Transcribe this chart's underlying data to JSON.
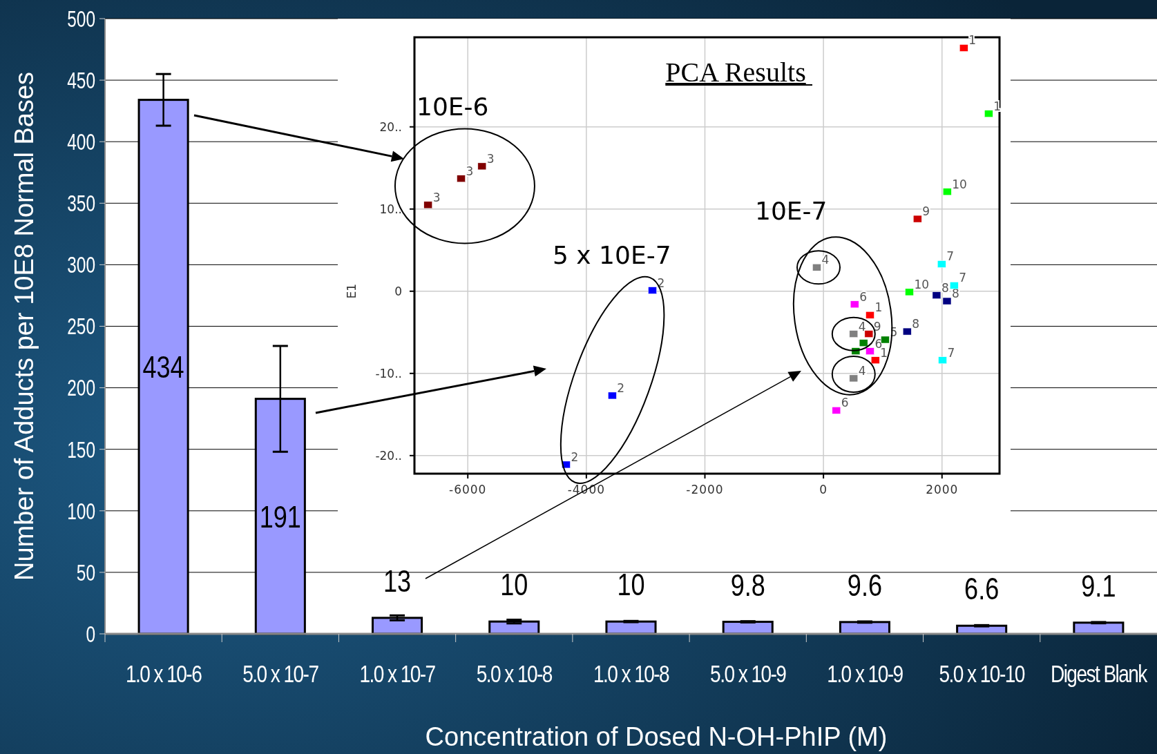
{
  "chart_data": [
    {
      "type": "bar",
      "categories": [
        "1.0 x 10-6",
        "5.0 x 10-7",
        "1.0 x 10-7",
        "5.0 x 10-8",
        "1.0 x 10-8",
        "5.0 x 10-9",
        "1.0 x 10-9",
        "5.0 x 10-10",
        "Digest Blank"
      ],
      "values": [
        434,
        191,
        13,
        10,
        10,
        9.8,
        9.6,
        6.6,
        9.1
      ],
      "errors": [
        21,
        43,
        2,
        1.5,
        0.5,
        0.5,
        0.5,
        0.5,
        0.5
      ],
      "color": "#9999ff",
      "ylim": [
        0,
        500
      ],
      "yticks": [
        0,
        50,
        100,
        150,
        200,
        250,
        300,
        350,
        400,
        450,
        500
      ],
      "grid": "y",
      "data_labels": true,
      "xlabel": "Concentration of Dosed N-OH-PhIP (M)",
      "ylabel": "Number of Adducts per 10E8 Normal Bases"
    },
    {
      "type": "scatter",
      "title": "PCA Results",
      "ylabel": "E1",
      "marker": "square",
      "grid": true,
      "xlim": [
        -6900,
        2970
      ],
      "ylim": [
        -22.2,
        30.9
      ],
      "xticks": [
        -6000,
        -4000,
        -2000,
        0,
        2000
      ],
      "yticks": [
        {
          "value": -20,
          "label": "-20.."
        },
        {
          "value": -10,
          "label": "-10.."
        },
        0,
        {
          "value": 10,
          "label": "10.."
        },
        {
          "value": 20,
          "label": "20.."
        }
      ],
      "annotations": [
        "10E-6",
        "5 x 10E-7",
        "10E-7",
        {
          "text": "1",
          "x": 2367,
          "y": 29.6
        },
        {
          "text": "1",
          "x": 785,
          "y": -2.9
        },
        {
          "text": "1",
          "x": 875,
          "y": -8.4
        },
        {
          "text": "2",
          "x": -2885,
          "y": 0.1
        },
        {
          "text": "2",
          "x": -3563,
          "y": -12.7
        },
        {
          "text": "2",
          "x": -4342,
          "y": -21.1
        },
        {
          "text": "3",
          "x": -6670,
          "y": 10.5
        },
        {
          "text": "3",
          "x": -6113,
          "y": 13.7
        },
        {
          "text": "3",
          "x": -5760,
          "y": 15.2
        },
        {
          "text": "4",
          "x": -113,
          "y": 2.9
        },
        {
          "text": "4",
          "x": 509,
          "y": -5.2
        },
        {
          "text": "4",
          "x": 509,
          "y": -10.6
        },
        {
          "text": "5",
          "x": 1041,
          "y": -5.9
        },
        {
          "text": "6",
          "x": 525,
          "y": -1.6
        },
        {
          "text": "6",
          "x": 785,
          "y": -7.3
        },
        {
          "text": "6",
          "x": 218,
          "y": -14.5
        },
        {
          "text": "7",
          "x": 1994,
          "y": 3.3
        },
        {
          "text": "7",
          "x": 2204,
          "y": 0.7
        },
        {
          "text": "7",
          "x": 2009,
          "y": -8.4
        },
        {
          "text": "8",
          "x": 1909,
          "y": -0.5
        },
        {
          "text": "8",
          "x": 2084,
          "y": -1.2
        },
        {
          "text": "8",
          "x": 1411,
          "y": -4.9
        },
        {
          "text": "9",
          "x": 1586,
          "y": 8.8
        },
        {
          "text": "9",
          "x": 766,
          "y": -5.2
        },
        {
          "text": "1",
          "x": 2787,
          "y": 21.6
        },
        {
          "text": "10",
          "x": 2087,
          "y": 12.1
        },
        {
          "text": "10",
          "x": 1449,
          "y": -0.1
        }
      ],
      "series": [
        {
          "color": "#ff0000",
          "x": [
            2367,
            785,
            875
          ],
          "values": [
            29.6,
            -2.9,
            -8.4
          ]
        },
        {
          "color": "#0000ff",
          "x": [
            -2885,
            -3563,
            -4342
          ],
          "values": [
            0.1,
            -12.7,
            -21.1
          ]
        },
        {
          "color": "#800000",
          "x": [
            -6670,
            -6113,
            -5760
          ],
          "values": [
            10.5,
            13.7,
            15.2
          ]
        },
        {
          "color": "#808080",
          "x": [
            -113,
            509,
            509
          ],
          "values": [
            2.9,
            -5.2,
            -10.6
          ]
        },
        {
          "color": "#008000",
          "x": [
            1041,
            676,
            545
          ],
          "values": [
            -5.9,
            -6.3,
            -7.3
          ]
        },
        {
          "color": "#ff00ff",
          "x": [
            525,
            785,
            218
          ],
          "values": [
            -1.6,
            -7.3,
            -14.5
          ]
        },
        {
          "color": "#00ffff",
          "x": [
            1994,
            2204,
            2009
          ],
          "values": [
            3.3,
            0.7,
            -8.4
          ]
        },
        {
          "color": "#000080",
          "x": [
            1909,
            2084,
            1411
          ],
          "values": [
            -0.5,
            -1.2,
            -4.9
          ]
        },
        {
          "color": "#cc0000",
          "x": [
            1586,
            766
          ],
          "values": [
            8.8,
            -5.2
          ]
        },
        {
          "color": "#00ff00",
          "x": [
            2787,
            2087,
            1449
          ],
          "values": [
            21.6,
            12.1,
            -0.1
          ]
        }
      ]
    }
  ]
}
